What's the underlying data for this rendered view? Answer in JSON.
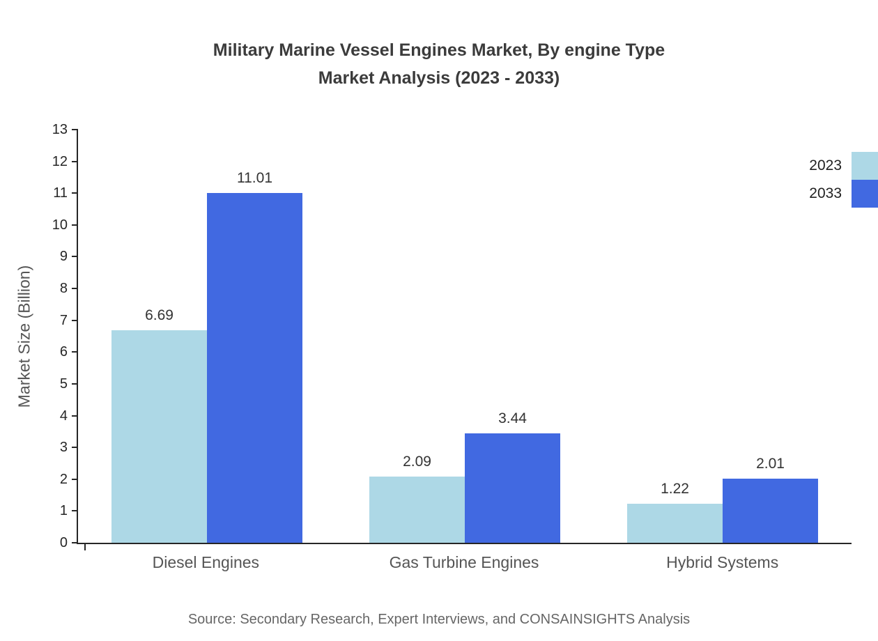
{
  "title": {
    "line1": "Military Marine Vessel Engines Market, By engine Type",
    "line2": "Market Analysis (2023 - 2033)"
  },
  "source": "Source: Secondary Research, Expert Interviews, and CONSAINSIGHTS Analysis",
  "chart_data": {
    "type": "bar",
    "title": "Military Marine Vessel Engines Market, By engine Type Market Analysis (2023 - 2033)",
    "categories": [
      "Diesel Engines",
      "Gas Turbine Engines",
      "Hybrid Systems"
    ],
    "series": [
      {
        "name": "2023",
        "color": "#add8e6",
        "values": [
          6.69,
          2.09,
          1.22
        ]
      },
      {
        "name": "2033",
        "color": "#4169e1",
        "values": [
          11.01,
          3.44,
          2.01
        ]
      }
    ],
    "xlabel": "",
    "ylabel": "Market Size (Billion)",
    "ylim": [
      0,
      13
    ],
    "ytick_step": 1,
    "grid": false,
    "legend_position": "top-right",
    "value_labels": true,
    "value_label_decimals": 2
  }
}
